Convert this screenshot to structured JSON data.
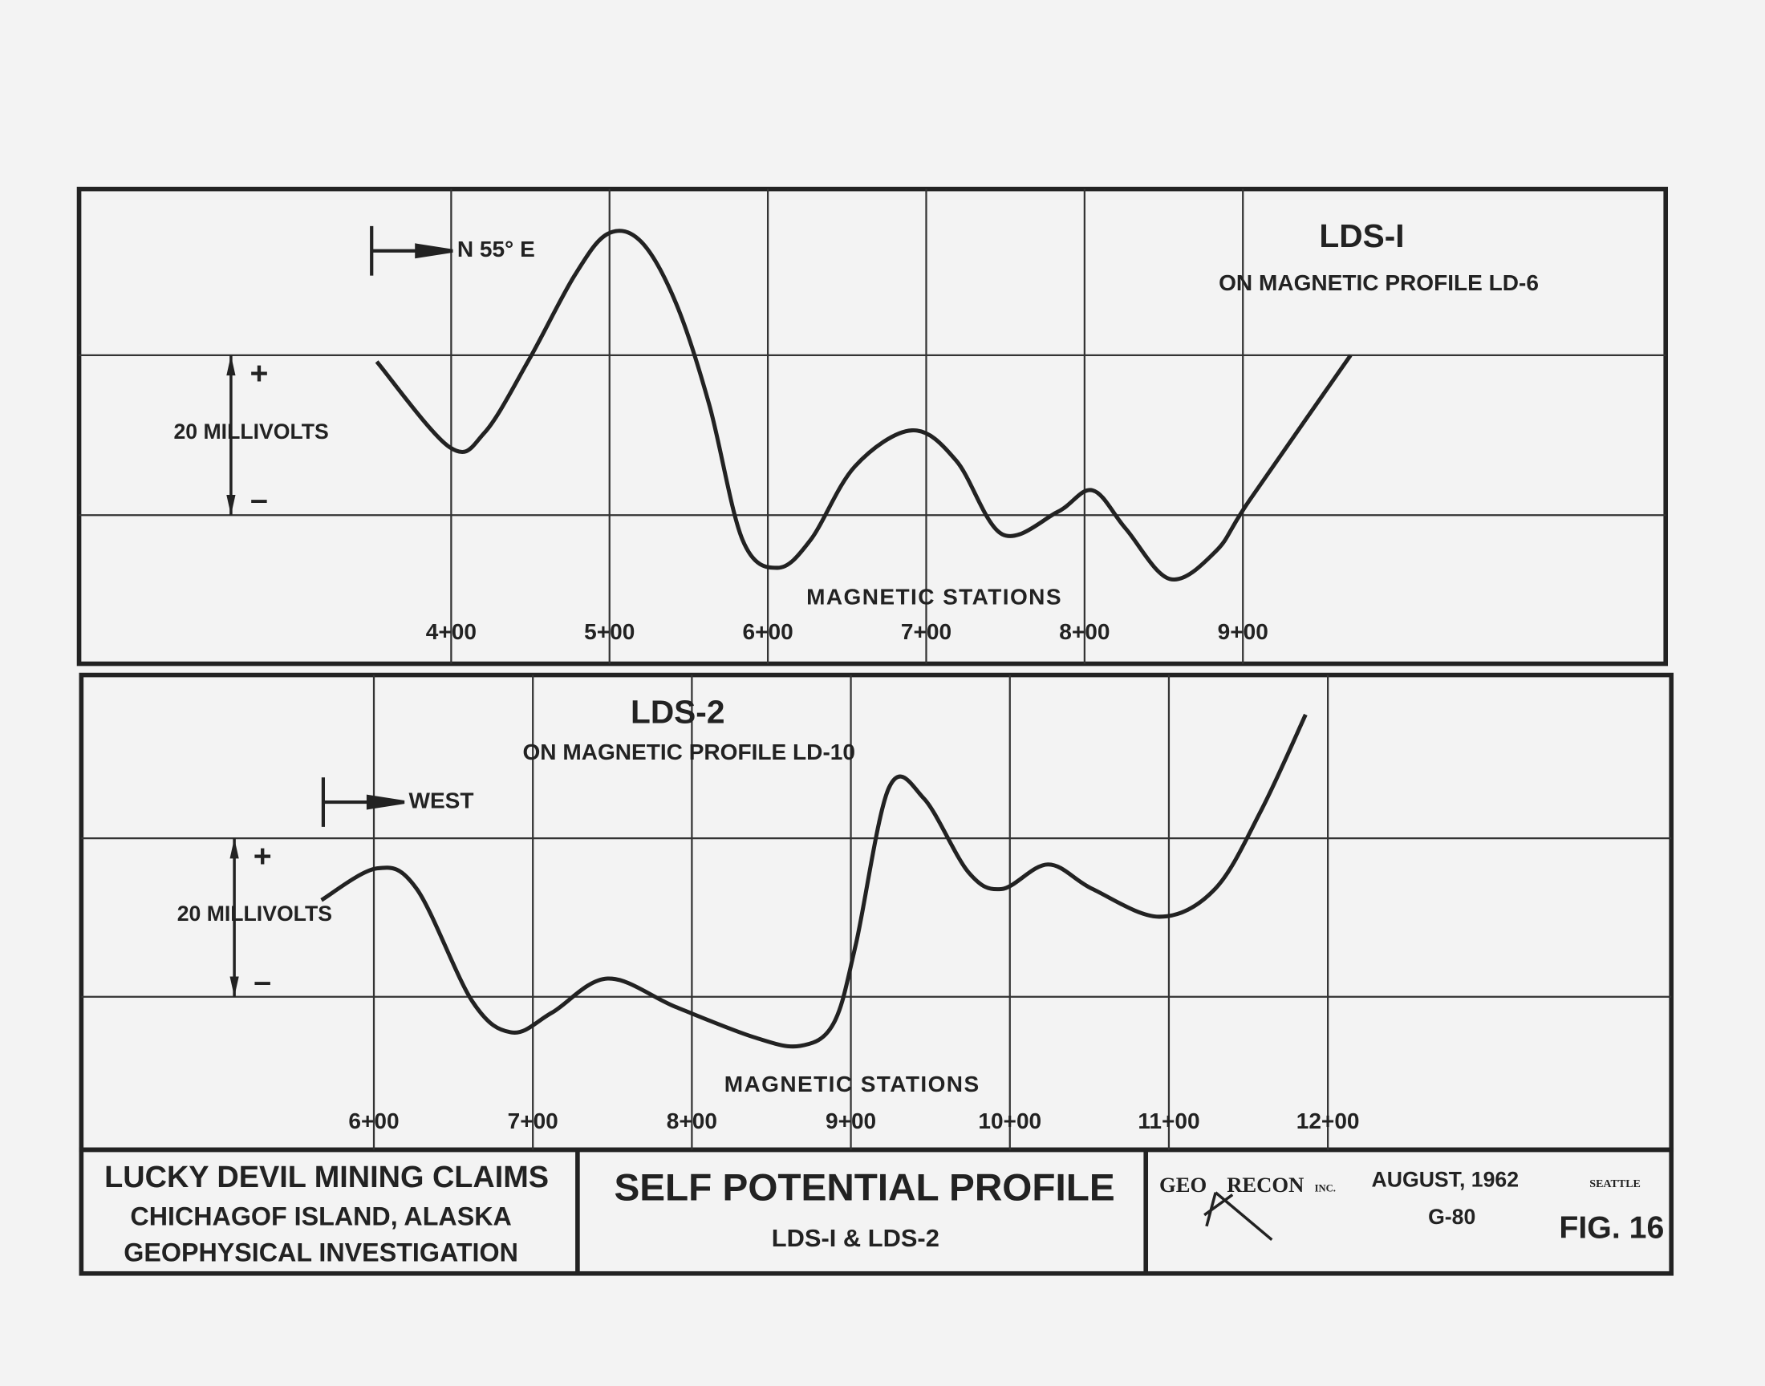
{
  "chart_data": [
    {
      "type": "line",
      "title": "LDS-I",
      "subtitle": "ON MAGNETIC PROFILE LD-6",
      "direction": "N 55° E",
      "scale_label": "20 MILLIVOLTS",
      "plus": "+",
      "minus": "–",
      "xlabel": "MAGNETIC STATIONS",
      "x": [
        353,
        399,
        421,
        449,
        478,
        499,
        520,
        542,
        563,
        584,
        606,
        627,
        655,
        691,
        719,
        748,
        783,
        805,
        826,
        854,
        883,
        904,
        968
      ],
      "series": [
        {
          "color": "#222222",
          "values": [
            19.2,
            8.5,
            10.3,
            19.4,
            30,
            35.2,
            34.2,
            26.5,
            13.8,
            -3.1,
            -6.6,
            -3.1,
            6.1,
            10.6,
            6.8,
            -2.4,
            0.4,
            3.1,
            -1.7,
            -8,
            -4.5,
            1.8,
            20
          ]
        }
      ],
      "xlim": [
        165,
        1167
      ],
      "ylim": [
        -18.6,
        40.8
      ],
      "xticks": [
        {
          "value": 400,
          "label": "4+00"
        },
        {
          "value": 500,
          "label": "5+00"
        },
        {
          "value": 600,
          "label": "6+00"
        },
        {
          "value": 700,
          "label": "7+00"
        },
        {
          "value": 800,
          "label": "8+00"
        },
        {
          "value": 900,
          "label": "9+00"
        }
      ],
      "yticks": [
        0,
        20
      ],
      "grid": true
    },
    {
      "type": "line",
      "title": "LDS-2",
      "subtitle": "ON MAGNETIC PROFILE LD-10",
      "direction": "WEST",
      "scale_label": "20 MILLIVOLTS",
      "plus": "+",
      "minus": "–",
      "xlabel": "MAGNETIC STATIONS",
      "x": [
        567,
        602,
        627,
        662,
        687,
        712,
        747,
        790,
        839,
        868,
        889,
        903,
        924,
        946,
        974,
        995,
        1024,
        1052,
        1094,
        1129,
        1158,
        1186
      ],
      "series": [
        {
          "color": "#222222",
          "values": [
            12.2,
            16.2,
            13.6,
            -0.6,
            -4.5,
            -2,
            2.3,
            -1.3,
            -5.1,
            -6.2,
            -3.4,
            6.5,
            26.4,
            25,
            15.7,
            13.6,
            16.7,
            13.6,
            10.1,
            13.6,
            23.5,
            35.6
          ]
        }
      ],
      "xlim": [
        416,
        1416
      ],
      "ylim": [
        -19.3,
        40.6
      ],
      "xticks": [
        {
          "value": 600,
          "label": "6+00"
        },
        {
          "value": 700,
          "label": "7+00"
        },
        {
          "value": 800,
          "label": "8+00"
        },
        {
          "value": 900,
          "label": "9+00"
        },
        {
          "value": 1000,
          "label": "10+00"
        },
        {
          "value": 1100,
          "label": "11+00"
        },
        {
          "value": 1200,
          "label": "12+00"
        }
      ],
      "yticks": [
        0,
        20
      ],
      "grid": true
    }
  ],
  "title_block": {
    "claims": "LUCKY DEVIL MINING CLAIMS",
    "location": "CHICHAGOF ISLAND, ALASKA",
    "investigation": "GEOPHYSICAL INVESTIGATION",
    "title": "SELF POTENTIAL PROFILE",
    "subtitle": "LDS-I & LDS-2",
    "company_a": "GEO",
    "company_b": "RECON",
    "company_suffix": "INC.",
    "date": "AUGUST, 1962",
    "number": "G-80",
    "city": "SEATTLE",
    "figure": "FIG. 16"
  }
}
